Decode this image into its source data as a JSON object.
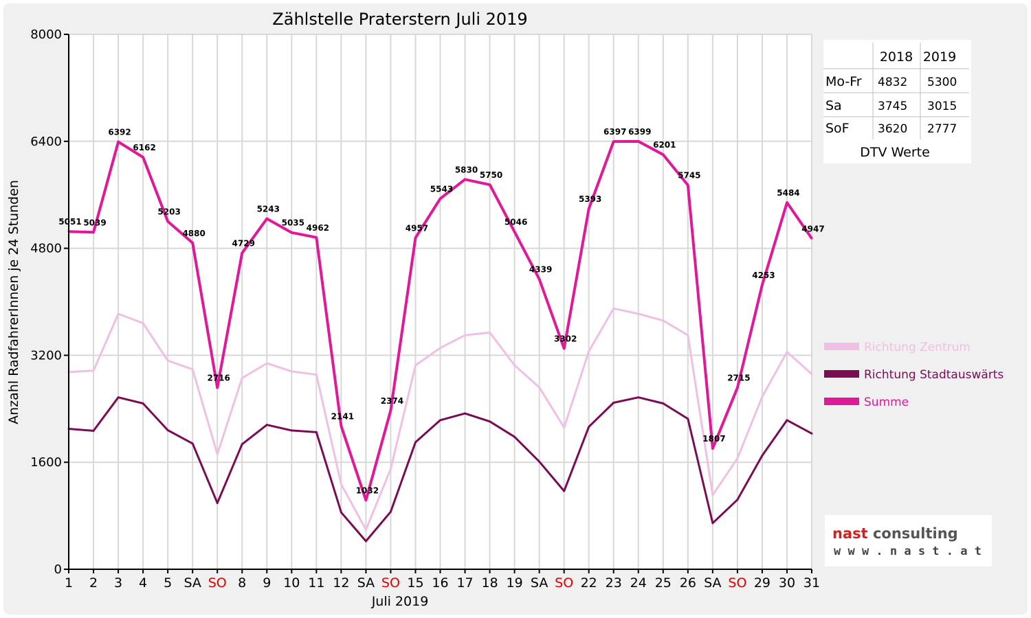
{
  "chart_data": {
    "type": "line",
    "title": "Zählstelle Praterstern Juli 2019",
    "xlabel": "Juli 2019",
    "ylabel": "Anzahl RadfahrerInnen je 24 Stunden",
    "ylim": [
      0,
      8000
    ],
    "yticks": [
      "0",
      "1600",
      "3200",
      "4800",
      "6400",
      "8000"
    ],
    "grid": true,
    "legend_position": "right",
    "categories": [
      "1",
      "2",
      "3",
      "4",
      "5",
      "SA",
      "SO",
      "8",
      "9",
      "10",
      "11",
      "12",
      "SA",
      "SO",
      "15",
      "16",
      "17",
      "18",
      "19",
      "SA",
      "SO",
      "22",
      "23",
      "24",
      "25",
      "26",
      "SA",
      "SO",
      "29",
      "30",
      "31"
    ],
    "sunday_color": "#e00000",
    "series": [
      {
        "name": "Richtung Zentrum",
        "color": "#f0c0e4",
        "values": [
          2950,
          2970,
          3820,
          3680,
          3120,
          2990,
          1720,
          2860,
          3080,
          2960,
          2910,
          1270,
          590,
          1500,
          3050,
          3310,
          3500,
          3540,
          3050,
          2720,
          2120,
          3260,
          3900,
          3820,
          3720,
          3500,
          1110,
          1660,
          2580,
          3250,
          2920
        ]
      },
      {
        "name": "Richtung Stadtauswärts",
        "color": "#7a0b54",
        "values": [
          2100,
          2070,
          2570,
          2480,
          2080,
          1880,
          990,
          1870,
          2160,
          2075,
          2050,
          850,
          420,
          860,
          1900,
          2230,
          2330,
          2210,
          1980,
          1610,
          1170,
          2130,
          2490,
          2570,
          2480,
          2250,
          690,
          1040,
          1700,
          2230,
          2030
        ]
      },
      {
        "name": "Summe",
        "color": "#e0189a",
        "values": [
          5051,
          5039,
          6392,
          6162,
          5203,
          4880,
          2716,
          4729,
          5243,
          5035,
          4962,
          2141,
          1032,
          2374,
          4957,
          5543,
          5830,
          5750,
          5046,
          4339,
          3302,
          5393,
          6397,
          6399,
          6201,
          5745,
          1807,
          2715,
          4253,
          5484,
          4947
        ]
      }
    ],
    "data_labels": [
      "5051",
      "5039",
      "6392",
      "6162",
      "5203",
      "4880",
      "2716",
      "4729",
      "5243",
      "5035",
      "4962",
      "2141",
      "1032",
      "2374",
      "4957",
      "5543",
      "5830",
      "5750",
      "5046",
      "4339",
      "3302",
      "5393",
      "6397",
      "6399",
      "6201",
      "5745",
      "1807",
      "2715",
      "4253",
      "5484",
      "4947"
    ]
  },
  "dtv_table": {
    "headers": [
      "",
      "2018",
      "2019"
    ],
    "rows": [
      {
        "label": "Mo-Fr",
        "v2018": "4832",
        "v2019": "5300"
      },
      {
        "label": "Sa",
        "v2018": "3745",
        "v2019": "3015"
      },
      {
        "label": "SoF",
        "v2018": "3620",
        "v2019": "2777"
      }
    ],
    "caption": "DTV Werte"
  },
  "logo": {
    "line1_part1": "nast",
    "line1_part2": " consulting",
    "line2": "w w w . n a s t . a t",
    "color_part1": "#d42020",
    "color_part2": "#555555"
  }
}
